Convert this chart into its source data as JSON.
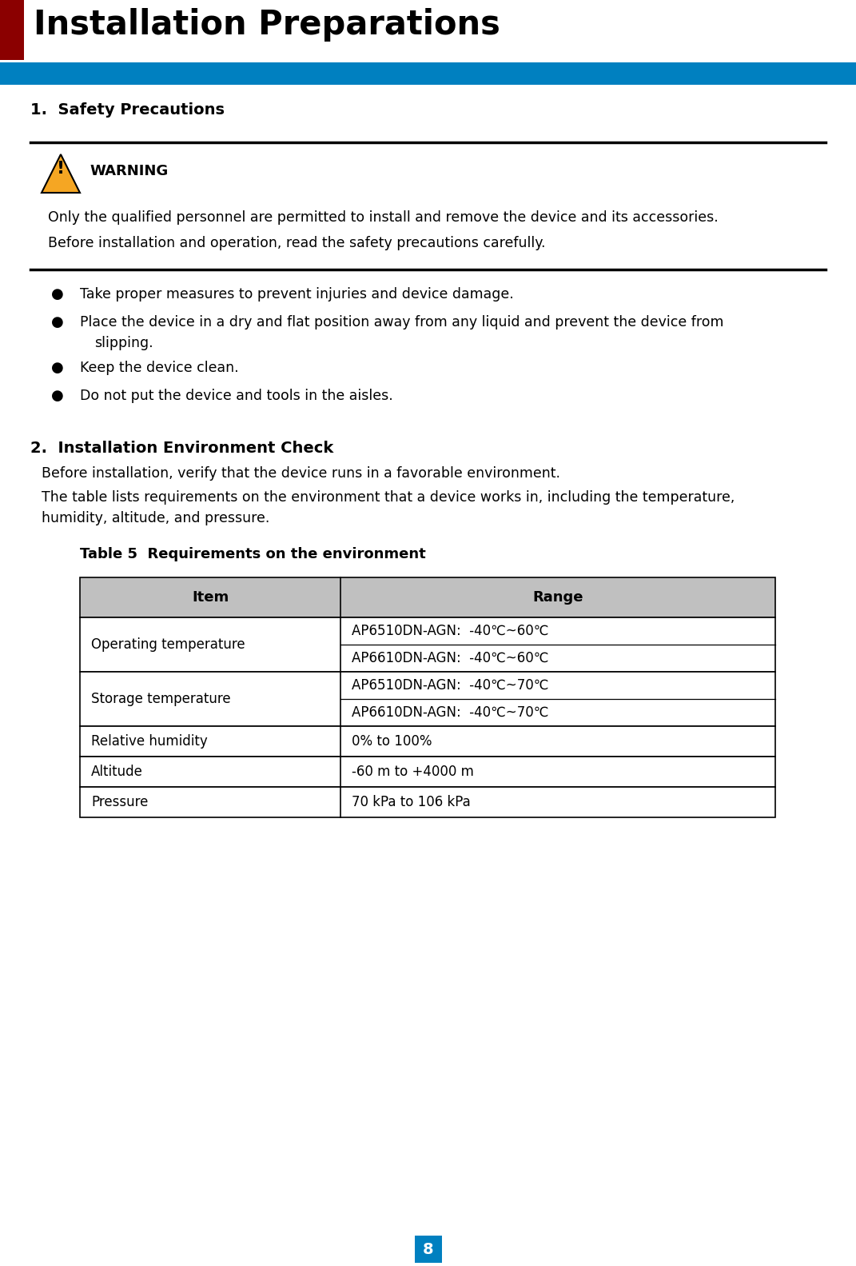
{
  "title": "Installation Preparations",
  "title_fontsize": 30,
  "title_color": "#000000",
  "title_bar_color": "#8B0000",
  "blue_bar_color": "#0080C0",
  "section1_title": "1.  Safety Precautions",
  "section2_title": "2.  Installation Environment Check",
  "warning_text": "WARNING",
  "warning_line1": "Only the qualified personnel are permitted to install and remove the device and its accessories.",
  "warning_line2": "Before installation and operation, read the safety precautions carefully.",
  "bullet_items": [
    "Take proper measures to prevent injuries and device damage.",
    "Place the device in a dry and flat position away from any liquid and prevent the device from\nslipping.",
    "Keep the device clean.",
    "Do not put the device and tools in the aisles."
  ],
  "section2_line1": "Before installation, verify that the device runs in a favorable environment.",
  "section2_line2": "The table lists requirements on the environment that a device works in, including the temperature,",
  "section2_line3": "humidity, altitude, and pressure.",
  "table_caption": "Table 5  Requirements on the environment",
  "table_header": [
    "Item",
    "Range"
  ],
  "table_header_bg": "#C0C0C0",
  "op_temp_r1": "AP6510DN-AGN:  -40℃~60℃",
  "op_temp_r2": "AP6610DN-AGN:  -40℃~60℃",
  "st_temp_r1": "AP6510DN-AGN:  -40℃~70℃",
  "st_temp_r2": "AP6610DN-AGN:  -40℃~70℃",
  "humidity_val": "0% to 100%",
  "altitude_val": "-60 m to +4000 m",
  "pressure_val": "70 kPa to 106 kPa",
  "page_number": "8",
  "page_num_bg": "#0080C0",
  "bg_color": "#FFFFFF",
  "triangle_color": "#F5A623",
  "text_color": "#000000"
}
